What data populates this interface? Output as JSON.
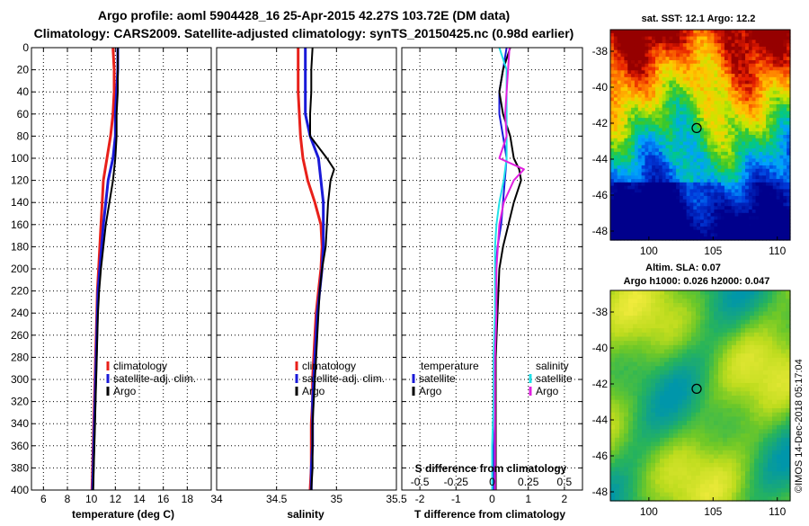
{
  "title": {
    "line1": "Argo profile: aoml 5904428_16 25-Apr-2015 42.27S 103.72E (DM data)",
    "line2": "Climatology: CARS2009. Satellite-adjusted climatology: synTS_20150425.nc (0.98d earlier)"
  },
  "colors": {
    "climatology": "#e8201a",
    "satellite": "#1a1ad8",
    "argo": "#000000",
    "salinity_satellite": "#20e0e8",
    "salinity_argo": "#e020e0"
  },
  "depth_ticks": [
    0,
    20,
    40,
    60,
    80,
    100,
    120,
    140,
    160,
    180,
    200,
    220,
    240,
    260,
    280,
    300,
    320,
    340,
    360,
    380,
    400
  ],
  "map_top": {
    "title": "sat. SST: 12.1 Argo: 12.2",
    "lat_ticks": [
      -38,
      -40,
      -42,
      -44,
      -46,
      -48
    ],
    "lon_ticks": [
      100,
      105,
      110
    ],
    "marker": {
      "lon": 103.72,
      "lat": -42.27
    }
  },
  "map_bottom": {
    "title1": "Altim. SLA: 0.07",
    "title2": "Argo h1000: 0.026 h2000: 0.047",
    "lat_ticks": [
      -38,
      -40,
      -42,
      -44,
      -46,
      -48
    ],
    "lon_ticks": [
      100,
      105,
      110
    ],
    "marker": {
      "lon": 103.72,
      "lat": -42.27
    }
  },
  "credit": "©IMOS 14-Dec-2018 05:17:04",
  "chart_data": [
    {
      "type": "line",
      "name": "temperature",
      "xlabel": "temperature (deg C)",
      "ylabel": "depth",
      "xlim": [
        5,
        20
      ],
      "ylim": [
        400,
        0
      ],
      "x_ticks": [
        6,
        8,
        10,
        12,
        14,
        16,
        18
      ],
      "legend": [
        "climatology",
        "satellite-adj. clim.",
        "Argo"
      ],
      "series": [
        {
          "name": "climatology",
          "depth": [
            0,
            20,
            40,
            60,
            80,
            100,
            120,
            140,
            160,
            180,
            200,
            220,
            240,
            260,
            280,
            300,
            320,
            340,
            360,
            380,
            400
          ],
          "values": [
            11.8,
            11.9,
            11.9,
            11.8,
            11.6,
            11.3,
            11.0,
            10.9,
            10.8,
            10.7,
            10.6,
            10.5,
            10.45,
            10.4,
            10.35,
            10.3,
            10.25,
            10.2,
            10.15,
            10.1,
            10.05
          ]
        },
        {
          "name": "satellite-adj. clim.",
          "depth": [
            0,
            20,
            40,
            60,
            80,
            100,
            120,
            140,
            160,
            180,
            200,
            220,
            240,
            260,
            280,
            300,
            320,
            340,
            360,
            380,
            400
          ],
          "values": [
            12.2,
            12.2,
            12.1,
            12.0,
            12.0,
            11.8,
            11.4,
            11.2,
            11.0,
            10.85,
            10.7,
            10.55,
            10.5,
            10.45,
            10.4,
            10.35,
            10.3,
            10.25,
            10.2,
            10.15,
            10.1
          ]
        },
        {
          "name": "Argo",
          "depth": [
            0,
            20,
            40,
            60,
            80,
            100,
            120,
            140,
            160,
            180,
            200,
            220,
            240,
            260,
            280,
            300,
            320,
            340,
            360,
            380,
            400
          ],
          "values": [
            12.2,
            12.2,
            12.2,
            12.1,
            12.1,
            12.0,
            11.8,
            11.5,
            11.2,
            11.0,
            10.8,
            10.65,
            10.55,
            10.5,
            10.45,
            10.4,
            10.35,
            10.3,
            10.25,
            10.2,
            10.15
          ]
        }
      ]
    },
    {
      "type": "line",
      "name": "salinity",
      "xlabel": "salinity",
      "ylabel": "depth",
      "xlim": [
        34,
        35.5
      ],
      "ylim": [
        400,
        0
      ],
      "x_ticks": [
        34,
        34.5,
        35,
        35.5
      ],
      "legend": [
        "climatology",
        "satellite-adj. clim.",
        "Argo"
      ],
      "series": [
        {
          "name": "climatology",
          "depth": [
            0,
            20,
            40,
            60,
            80,
            100,
            120,
            140,
            160,
            180,
            200,
            220,
            240,
            260,
            280,
            300,
            320,
            340,
            360,
            380,
            400
          ],
          "values": [
            34.68,
            34.68,
            34.68,
            34.69,
            34.7,
            34.72,
            34.76,
            34.82,
            34.87,
            34.88,
            34.87,
            34.85,
            34.83,
            34.82,
            34.81,
            34.8,
            34.8,
            34.79,
            34.79,
            34.79,
            34.78
          ]
        },
        {
          "name": "satellite-adj. clim.",
          "depth": [
            0,
            20,
            40,
            60,
            80,
            100,
            120,
            140,
            160,
            180,
            200,
            220,
            240,
            260,
            280,
            300,
            320,
            340,
            360,
            380,
            400
          ],
          "values": [
            34.74,
            34.74,
            34.74,
            34.74,
            34.78,
            34.85,
            34.87,
            34.89,
            34.89,
            34.89,
            34.88,
            34.86,
            34.84,
            34.83,
            34.82,
            34.81,
            34.8,
            34.8,
            34.8,
            34.79,
            34.79
          ]
        },
        {
          "name": "Argo",
          "depth": [
            0,
            20,
            40,
            60,
            80,
            100,
            110,
            120,
            140,
            160,
            180,
            200,
            220,
            240,
            260,
            280,
            300,
            320,
            340,
            360,
            380,
            400
          ],
          "values": [
            34.8,
            34.79,
            34.79,
            34.78,
            34.78,
            34.92,
            34.98,
            34.95,
            34.93,
            34.92,
            34.91,
            34.88,
            34.86,
            34.85,
            34.84,
            34.83,
            34.82,
            34.81,
            34.8,
            34.8,
            34.8,
            34.79
          ]
        }
      ]
    },
    {
      "type": "line",
      "name": "difference from climatology",
      "xlabel": "T difference from climatology",
      "xlabel_top": "S difference from climatology",
      "ylabel": "depth",
      "xlim": [
        -2.5,
        2.5
      ],
      "ylim": [
        400,
        0
      ],
      "x_ticks": [
        -2,
        -1,
        0,
        1,
        2
      ],
      "x_ticks_top": [
        "-0.5",
        "-0.25",
        "0",
        "0.25",
        "0.5"
      ],
      "legend_temperature": {
        "title": "temperature",
        "items": [
          "satellite",
          "Argo"
        ]
      },
      "legend_salinity": {
        "title": "salinity",
        "items": [
          "satellite",
          "Argo"
        ]
      },
      "series": [
        {
          "name": "temperature satellite",
          "depth": [
            0,
            20,
            40,
            60,
            80,
            100,
            120,
            140,
            160,
            180,
            200,
            240,
            280,
            320,
            360,
            400
          ],
          "values": [
            0.4,
            0.3,
            0.2,
            0.2,
            0.3,
            0.4,
            0.35,
            0.3,
            0.25,
            0.15,
            0.1,
            0.1,
            0.1,
            0.1,
            0.05,
            0.05
          ]
        },
        {
          "name": "temperature Argo",
          "depth": [
            0,
            10,
            20,
            40,
            60,
            80,
            100,
            110,
            120,
            140,
            160,
            180,
            200,
            240,
            280,
            320,
            360,
            400
          ],
          "values": [
            0.5,
            0.4,
            0.3,
            0.2,
            0.3,
            0.5,
            0.6,
            0.75,
            0.8,
            0.6,
            0.45,
            0.3,
            0.2,
            0.15,
            0.1,
            0.1,
            0.1,
            0.1
          ]
        },
        {
          "name": "salinity satellite",
          "depth": [
            0,
            20,
            40,
            60,
            80,
            100,
            120,
            140,
            160,
            180,
            200,
            240,
            280,
            320,
            360,
            400
          ],
          "values": [
            0.05,
            0.1,
            0.1,
            0.1,
            0.1,
            0.1,
            0.08,
            0.05,
            0.03,
            0.02,
            0.02,
            0.02,
            0.01,
            0.01,
            0.0,
            0.0
          ]
        },
        {
          "name": "salinity Argo",
          "depth": [
            0,
            20,
            40,
            60,
            80,
            100,
            110,
            120,
            140,
            160,
            180,
            200,
            240,
            280,
            320,
            360,
            400
          ],
          "values": [
            0.12,
            0.11,
            0.1,
            0.09,
            0.1,
            0.05,
            0.22,
            0.15,
            0.08,
            0.05,
            0.04,
            0.03,
            0.03,
            0.02,
            0.02,
            0.02,
            0.02
          ]
        }
      ]
    }
  ]
}
